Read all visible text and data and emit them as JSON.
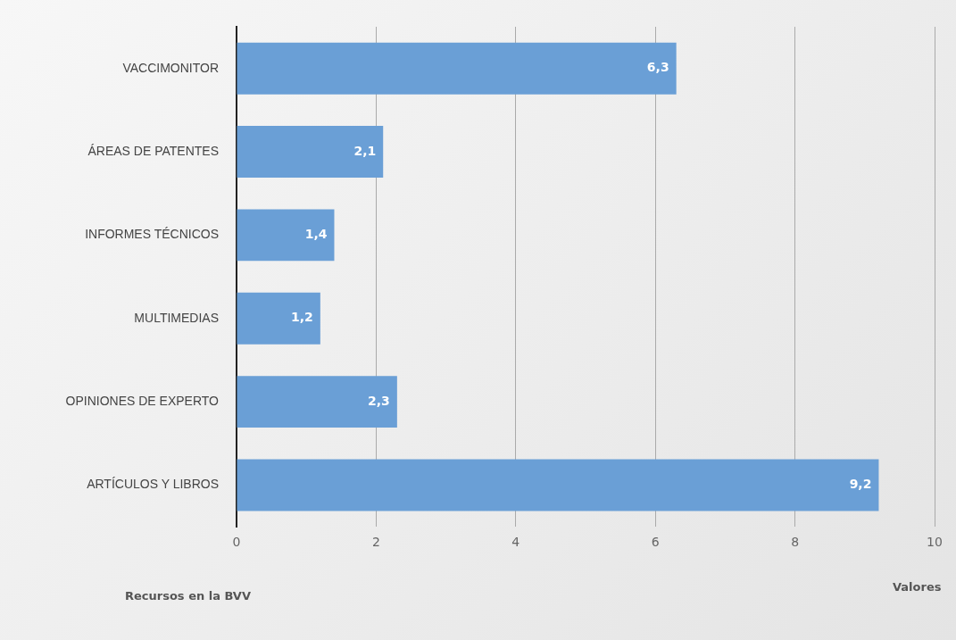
{
  "chart_data": {
    "type": "bar",
    "orientation": "horizontal",
    "xlabel": "Valores",
    "ylabel": "Recursos en la BVV",
    "categories": [
      "VACCIMONITOR",
      "ÁREAS DE PATENTES",
      "INFORMES TÉCNICOS",
      "MULTIMEDIAS",
      "OPINIONES DE EXPERTO",
      "ARTÍCULOS Y LIBROS"
    ],
    "values": [
      6.3,
      2.1,
      1.4,
      1.2,
      2.3,
      9.2
    ],
    "value_labels": [
      "6,3",
      "2,1",
      "1,4",
      "1,2",
      "2,3",
      "9,2"
    ],
    "color": "#6a9fd6",
    "xlim": [
      0,
      10
    ],
    "xticks": [
      0,
      2,
      4,
      6,
      8,
      10
    ],
    "grid": "x",
    "legend": false
  }
}
